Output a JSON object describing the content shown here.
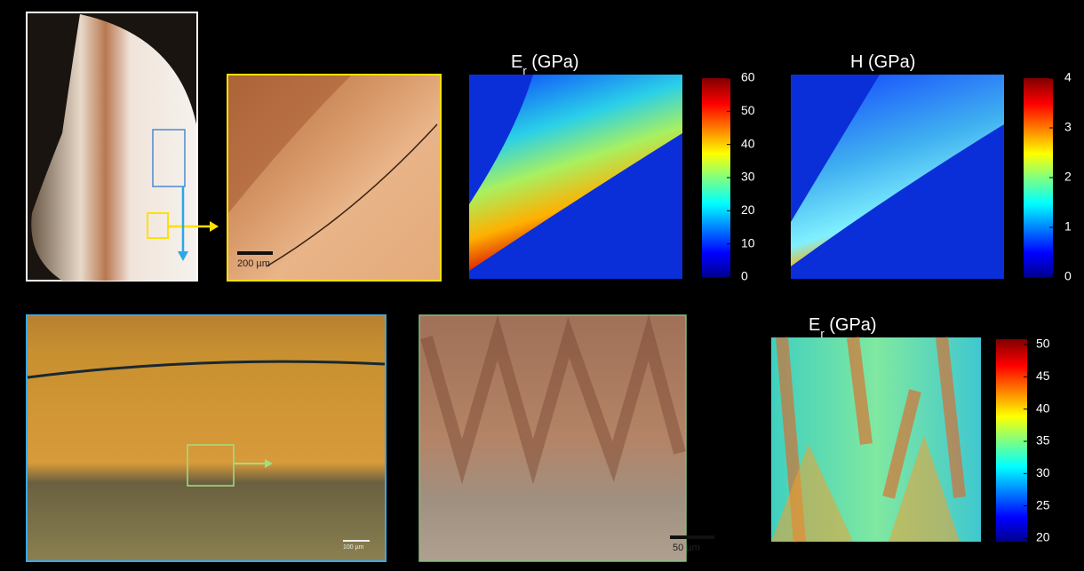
{
  "maps": [
    {
      "title": {
        "symbol": "E",
        "subscript": "r",
        "unit": "(GPa)"
      },
      "colorbar": {
        "lim": [
          0,
          60
        ],
        "ticks": [
          0,
          10,
          20,
          30,
          40,
          50,
          60
        ]
      }
    },
    {
      "title": {
        "symbol": "H",
        "unit": "(GPa)"
      },
      "colorbar": {
        "lim": [
          0,
          4
        ],
        "ticks": [
          0,
          1,
          2,
          3,
          4
        ]
      }
    },
    {
      "title": {
        "symbol": "E",
        "subscript": "r",
        "unit": "(GPa)"
      },
      "colorbar": {
        "lim": [
          20,
          50
        ],
        "ticks": [
          20,
          25,
          30,
          35,
          40,
          45,
          50
        ]
      }
    }
  ],
  "scale_bars": [
    "200 µm",
    "100 µm",
    "50 µm"
  ]
}
